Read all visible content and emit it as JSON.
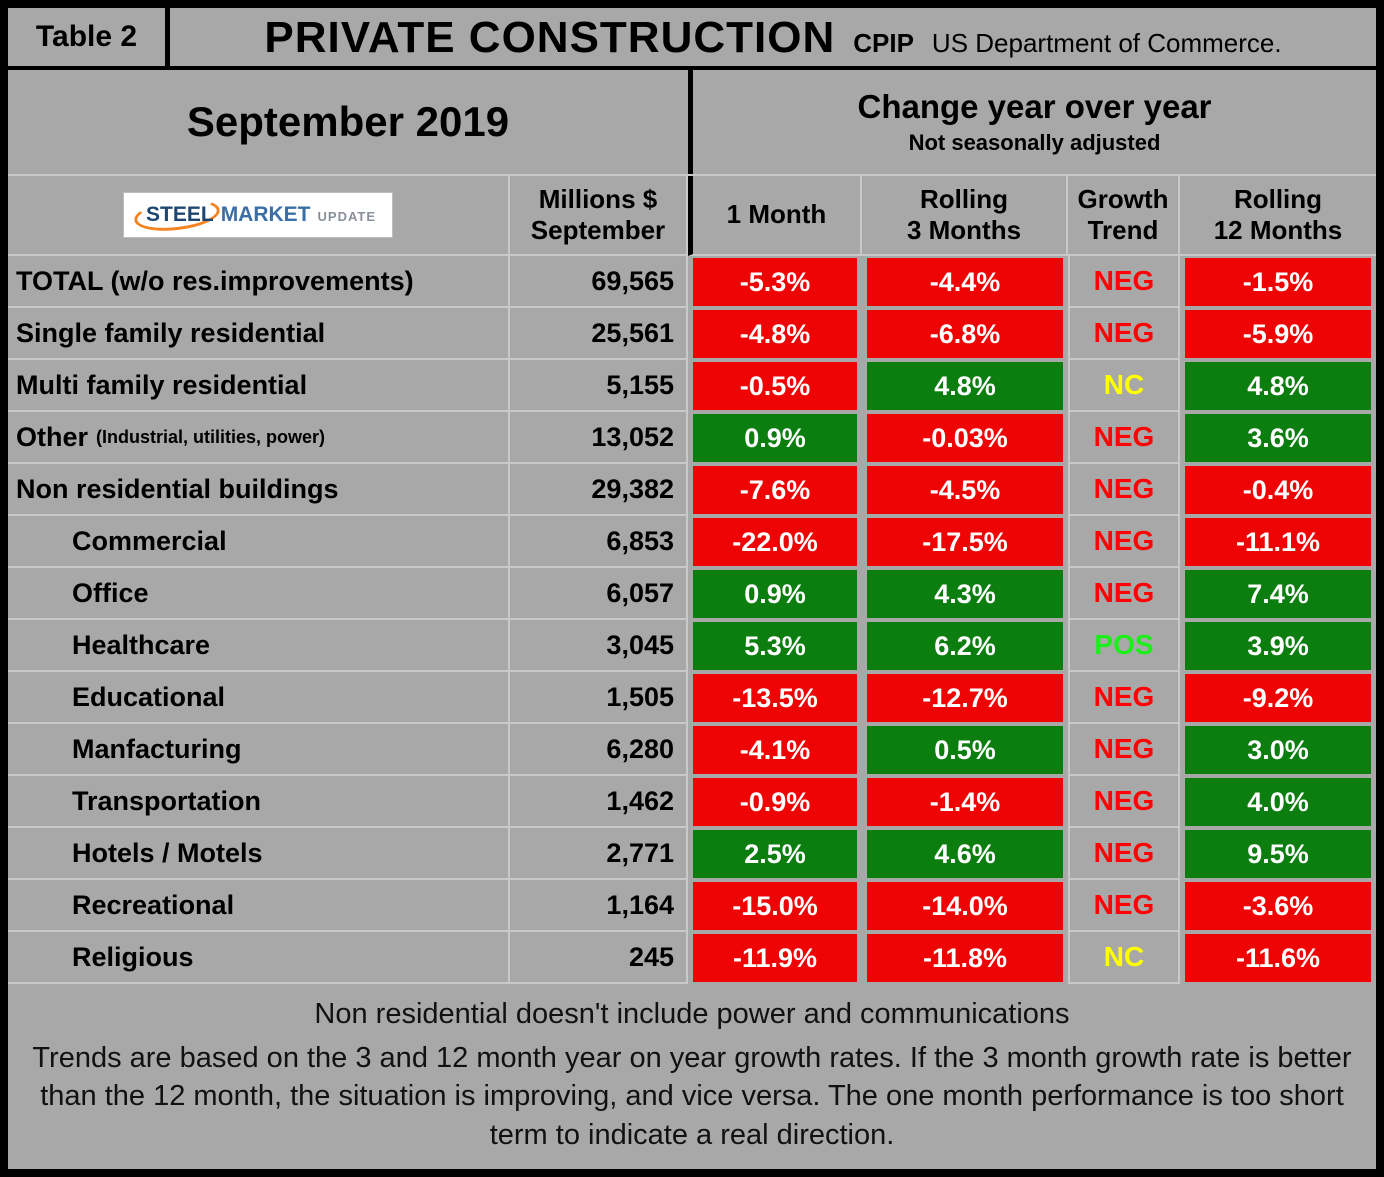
{
  "colors": {
    "page_bg": "#a8a8a8",
    "line": "#c9c9c9",
    "negative_bg": "#ee0404",
    "positive_bg": "#0c7e10",
    "neg_text": "#fd0303",
    "pos_text": "#1aef1a",
    "nc_text": "#ffff00",
    "logo_orange": "#f58220",
    "logo_navy": "#1c4670",
    "logo_blue": "#3a6ea5",
    "logo_gray": "#8a9099"
  },
  "header": {
    "table_label": "Table 2",
    "title": "PRIVATE CONSTRUCTION",
    "acronym": "CPIP",
    "source": "US Department of Commerce."
  },
  "period": {
    "month_label": "September 2019",
    "change_title": "Change year over year",
    "change_subtitle": "Not seasonally adjusted"
  },
  "logo": {
    "steel": "STEEL",
    "market": "MARKET",
    "update": "UPDATE"
  },
  "columns": {
    "millions": "Millions $\nSeptember",
    "one_month": "1 Month",
    "rolling_3": "Rolling\n3 Months",
    "growth": "Growth\nTrend",
    "rolling_12": "Rolling\n12 Months"
  },
  "rows": [
    {
      "label": "TOTAL (w/o res.improvements)",
      "row_class": "",
      "millions": "69,565",
      "m1": "-5.3%",
      "m1c": "neg",
      "r3": "-4.4%",
      "r3c": "neg",
      "trend": "NEG",
      "trendc": "trend-neg",
      "r12": "-1.5%",
      "r12c": "neg"
    },
    {
      "label": "Single family residential",
      "row_class": "",
      "millions": "25,561",
      "m1": "-4.8%",
      "m1c": "neg",
      "r3": "-6.8%",
      "r3c": "neg",
      "trend": "NEG",
      "trendc": "trend-neg",
      "r12": "-5.9%",
      "r12c": "neg"
    },
    {
      "label": "Multi family residential",
      "row_class": "",
      "millions": "5,155",
      "m1": "-0.5%",
      "m1c": "neg",
      "r3": "4.8%",
      "r3c": "pos",
      "trend": "NC",
      "trendc": "trend-nc",
      "r12": "4.8%",
      "r12c": "pos"
    },
    {
      "label": "Other",
      "sublabel": "(Industrial, utilities, power)",
      "row_class": "",
      "millions": "13,052",
      "m1": "0.9%",
      "m1c": "pos",
      "r3": "-0.03%",
      "r3c": "neg",
      "trend": "NEG",
      "trendc": "trend-neg",
      "r12": "3.6%",
      "r12c": "pos"
    },
    {
      "label": "Non residential buildings",
      "row_class": "",
      "millions": "29,382",
      "m1": "-7.6%",
      "m1c": "neg",
      "r3": "-4.5%",
      "r3c": "neg",
      "trend": "NEG",
      "trendc": "trend-neg",
      "r12": "-0.4%",
      "r12c": "neg"
    },
    {
      "label": "Commercial",
      "row_class": "indent",
      "millions": "6,853",
      "m1": "-22.0%",
      "m1c": "neg",
      "r3": "-17.5%",
      "r3c": "neg",
      "trend": "NEG",
      "trendc": "trend-neg",
      "r12": "-11.1%",
      "r12c": "neg"
    },
    {
      "label": "Office",
      "row_class": "indent",
      "millions": "6,057",
      "m1": "0.9%",
      "m1c": "pos",
      "r3": "4.3%",
      "r3c": "pos",
      "trend": "NEG",
      "trendc": "trend-neg",
      "r12": "7.4%",
      "r12c": "pos"
    },
    {
      "label": "Healthcare",
      "row_class": "indent",
      "millions": "3,045",
      "m1": "5.3%",
      "m1c": "pos",
      "r3": "6.2%",
      "r3c": "pos",
      "trend": "POS",
      "trendc": "trend-pos",
      "r12": "3.9%",
      "r12c": "pos"
    },
    {
      "label": "Educational",
      "row_class": "indent",
      "millions": "1,505",
      "m1": "-13.5%",
      "m1c": "neg",
      "r3": "-12.7%",
      "r3c": "neg",
      "trend": "NEG",
      "trendc": "trend-neg",
      "r12": "-9.2%",
      "r12c": "neg"
    },
    {
      "label": "Manfacturing",
      "row_class": "indent",
      "millions": "6,280",
      "m1": "-4.1%",
      "m1c": "neg",
      "r3": "0.5%",
      "r3c": "pos",
      "trend": "NEG",
      "trendc": "trend-neg",
      "r12": "3.0%",
      "r12c": "pos"
    },
    {
      "label": "Transportation",
      "row_class": "indent",
      "millions": "1,462",
      "m1": "-0.9%",
      "m1c": "neg",
      "r3": "-1.4%",
      "r3c": "neg",
      "trend": "NEG",
      "trendc": "trend-neg",
      "r12": "4.0%",
      "r12c": "pos"
    },
    {
      "label": "Hotels / Motels",
      "row_class": "indent",
      "millions": "2,771",
      "m1": "2.5%",
      "m1c": "pos",
      "r3": "4.6%",
      "r3c": "pos",
      "trend": "NEG",
      "trendc": "trend-neg",
      "r12": "9.5%",
      "r12c": "pos"
    },
    {
      "label": "Recreational",
      "row_class": "indent",
      "millions": "1,164",
      "m1": "-15.0%",
      "m1c": "neg",
      "r3": "-14.0%",
      "r3c": "neg",
      "trend": "NEG",
      "trendc": "trend-neg",
      "r12": "-3.6%",
      "r12c": "neg"
    },
    {
      "label": "Religious",
      "row_class": "indent",
      "millions": "245",
      "m1": "-11.9%",
      "m1c": "neg",
      "r3": "-11.8%",
      "r3c": "neg",
      "trend": "NC",
      "trendc": "trend-nc",
      "r12": "-11.6%",
      "r12c": "neg"
    }
  ],
  "footer": {
    "note1": "Non residential doesn't include power and communications",
    "note2": "Trends are based on the 3 and 12 month year on year growth rates. If the 3 month growth rate is better than the 12 month, the situation is improving, and vice versa. The one month performance is too short term to indicate a real direction."
  },
  "chart_data": {
    "type": "table",
    "title": "PRIVATE CONSTRUCTION (CPIP, US Department of Commerce)",
    "period": "September 2019",
    "subtitle": "Change year over year, Not seasonally adjusted",
    "columns": [
      "Millions $ September",
      "1 Month",
      "Rolling 3 Months",
      "Growth Trend",
      "Rolling 12 Months"
    ],
    "cell_color_coding": {
      "red": "negative change",
      "green": "positive change"
    },
    "rows": [
      {
        "category": "TOTAL (w/o res.improvements)",
        "millions_usd": 69565,
        "one_month_pct": -5.3,
        "rolling_3m_pct": -4.4,
        "growth_trend": "NEG",
        "rolling_12m_pct": -1.5
      },
      {
        "category": "Single family residential",
        "millions_usd": 25561,
        "one_month_pct": -4.8,
        "rolling_3m_pct": -6.8,
        "growth_trend": "NEG",
        "rolling_12m_pct": -5.9
      },
      {
        "category": "Multi family residential",
        "millions_usd": 5155,
        "one_month_pct": -0.5,
        "rolling_3m_pct": 4.8,
        "growth_trend": "NC",
        "rolling_12m_pct": 4.8
      },
      {
        "category": "Other (Industrial, utilities, power)",
        "millions_usd": 13052,
        "one_month_pct": 0.9,
        "rolling_3m_pct": -0.03,
        "growth_trend": "NEG",
        "rolling_12m_pct": 3.6
      },
      {
        "category": "Non residential buildings",
        "millions_usd": 29382,
        "one_month_pct": -7.6,
        "rolling_3m_pct": -4.5,
        "growth_trend": "NEG",
        "rolling_12m_pct": -0.4
      },
      {
        "category": "Commercial",
        "millions_usd": 6853,
        "one_month_pct": -22.0,
        "rolling_3m_pct": -17.5,
        "growth_trend": "NEG",
        "rolling_12m_pct": -11.1
      },
      {
        "category": "Office",
        "millions_usd": 6057,
        "one_month_pct": 0.9,
        "rolling_3m_pct": 4.3,
        "growth_trend": "NEG",
        "rolling_12m_pct": 7.4
      },
      {
        "category": "Healthcare",
        "millions_usd": 3045,
        "one_month_pct": 5.3,
        "rolling_3m_pct": 6.2,
        "growth_trend": "POS",
        "rolling_12m_pct": 3.9
      },
      {
        "category": "Educational",
        "millions_usd": 1505,
        "one_month_pct": -13.5,
        "rolling_3m_pct": -12.7,
        "growth_trend": "NEG",
        "rolling_12m_pct": -9.2
      },
      {
        "category": "Manfacturing",
        "millions_usd": 6280,
        "one_month_pct": -4.1,
        "rolling_3m_pct": 0.5,
        "growth_trend": "NEG",
        "rolling_12m_pct": 3.0
      },
      {
        "category": "Transportation",
        "millions_usd": 1462,
        "one_month_pct": -0.9,
        "rolling_3m_pct": -1.4,
        "growth_trend": "NEG",
        "rolling_12m_pct": 4.0
      },
      {
        "category": "Hotels / Motels",
        "millions_usd": 2771,
        "one_month_pct": 2.5,
        "rolling_3m_pct": 4.6,
        "growth_trend": "NEG",
        "rolling_12m_pct": 9.5
      },
      {
        "category": "Recreational",
        "millions_usd": 1164,
        "one_month_pct": -15.0,
        "rolling_3m_pct": -14.0,
        "growth_trend": "NEG",
        "rolling_12m_pct": -3.6
      },
      {
        "category": "Religious",
        "millions_usd": 245,
        "one_month_pct": -11.9,
        "rolling_3m_pct": -11.8,
        "growth_trend": "NC",
        "rolling_12m_pct": -11.6
      }
    ]
  }
}
